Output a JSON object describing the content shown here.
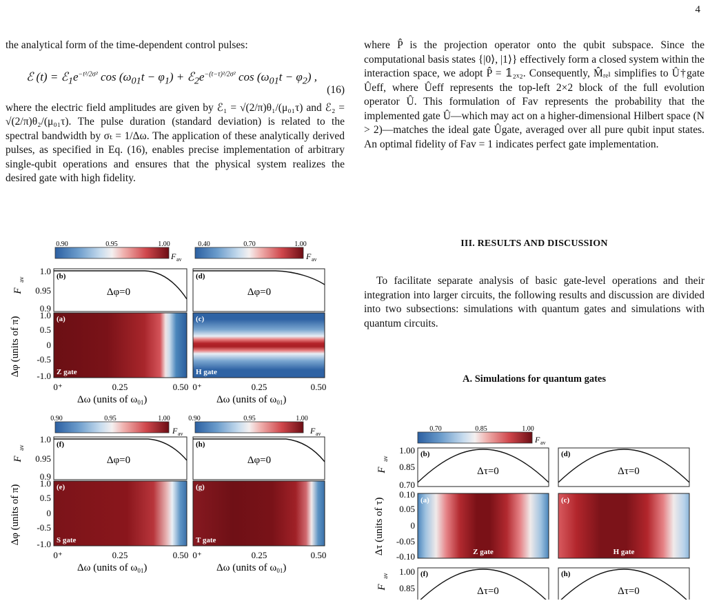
{
  "page_number": "4",
  "left_column": {
    "intro": "the analytical form of the time-dependent control pulses:",
    "equation": {
      "lhs": "ℰ (t) = ℰ",
      "terms": "ℰ₁e^{−t²/2σₜ²} cos (ω₀₁t − φ₁) + ℰ₂e^{−(t−τ)²/2σₜ²} cos (ω₀₁t − φ₂) ,",
      "number": "(16)"
    },
    "paragraph": "where the electric field amplitudes are given by ℰ₁ = √(2/π)θ₁/(μ₀₁τ) and ℰ₂ = √(2/π)θ₂/(μ₀₁τ). The pulse duration (standard deviation) is related to the spectral bandwidth by σₜ = 1/Δω. The application of these analytically derived pulses, as specified in Eq. (16), enables precise implementation of arbitrary single-qubit operations and ensures that the physical system realizes the desired gate with high fidelity."
  },
  "right_column": {
    "paragraph": "where P̂ is the projection operator onto the qubit subspace. Since the computational basis states {|0⟩, |1⟩} effectively form a closed system within the interaction space, we adopt P̂ = 𝟙₂ₓ₂. Consequently, M̂ᵣₑₗ simplifies to Û†gate Ûeff, where Ûeff represents the top-left 2×2 block of the full evolution operator Û. This formulation of Fav represents the probability that the implemented gate Û—which may act on a higher-dimensional Hilbert space (N > 2)—matches the ideal gate Ûgate, averaged over all pure qubit input states. An optimal fidelity of Fav = 1 indicates perfect gate implementation.",
    "section_title": "III.   RESULTS AND DISCUSSION",
    "section_paragraph": "To facilitate separate analysis of basic gate-level operations and their integration into larger circuits, the following results and discussion are divided into two subsections: simulations with quantum gates and simulations with quantum circuits.",
    "subsection_title": "A.   Simulations for quantum gates"
  },
  "figure_left": {
    "colorbar_label": "F",
    "colorbar_label_sub": "av",
    "y_label_fav": "F",
    "y_label_fav_sub": "av",
    "y_label_phi": "Δφ (units of π)",
    "x_label": "Δω (units of ω",
    "x_label_sub": "01",
    "x_label_close": ")",
    "line_annotation": "Δφ=0",
    "x_ticks": [
      "0⁺",
      "0.25",
      "0.50"
    ],
    "fav_ticks": [
      "1.0",
      "0.95",
      "0.9"
    ],
    "phi_ticks": [
      "1.0",
      "0.5",
      "0",
      "-0.5",
      "-1.0"
    ],
    "panels": [
      {
        "line": "(b)",
        "map": "(a)",
        "gate": "Z gate",
        "cbar": [
          "0.90",
          "0.95",
          "1.00"
        ]
      },
      {
        "line": "(d)",
        "map": "(c)",
        "gate": "H gate",
        "cbar": [
          "0.40",
          "0.70",
          "1.00"
        ]
      },
      {
        "line": "(f)",
        "map": "(e)",
        "gate": "S gate",
        "cbar": [
          "0.90",
          "0.95",
          "1.00"
        ]
      },
      {
        "line": "(h)",
        "map": "(g)",
        "gate": "T gate",
        "cbar": [
          "0.90",
          "0.95",
          "1.00"
        ]
      }
    ]
  },
  "figure_right": {
    "colorbar_ticks": [
      "0.70",
      "0.85",
      "1.00"
    ],
    "colorbar_label": "F",
    "colorbar_label_sub": "av",
    "y_label_fav": "F",
    "y_label_fav_sub": "av",
    "y_label_tau": "Δτ (units of τ)",
    "fav_ticks": [
      "1.00",
      "0.85",
      "0.70"
    ],
    "tau_ticks": [
      "0.10",
      "0.05",
      "0",
      "-0.05",
      "-0.10"
    ],
    "fav_ticks_lower": [
      "1.00",
      "0.85"
    ],
    "line_annotation": "Δτ=0",
    "panels": [
      {
        "line": "(b)",
        "map": "(a)",
        "gate": "Z gate"
      },
      {
        "line": "(d)",
        "map": "(c)",
        "gate": "H gate"
      },
      {
        "line": "(f)",
        "map": "",
        "gate": ""
      },
      {
        "line": "(h)",
        "map": "",
        "gate": ""
      }
    ]
  }
}
